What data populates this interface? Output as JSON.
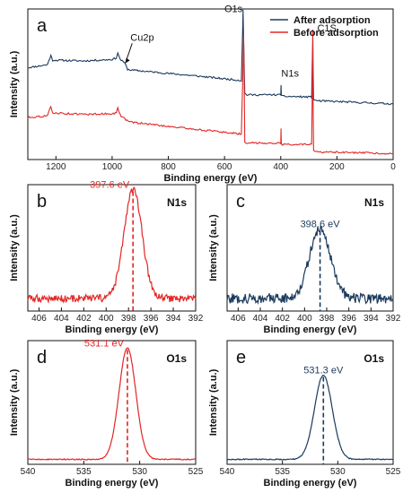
{
  "colors": {
    "after": "#1b3a5c",
    "before": "#e32626",
    "axis": "#111111"
  },
  "chart_data": [
    {
      "id": "a",
      "type": "line",
      "panel_letter": "a",
      "xlabel": "Binding energy (eV)",
      "ylabel": "Intensity (a.u.)",
      "xlim": [
        1300,
        0
      ],
      "x_reversed": true,
      "xticks": [
        1200,
        1000,
        800,
        600,
        400,
        200,
        0
      ],
      "legend": "top-right",
      "series": [
        {
          "name": "After adsorption",
          "color": "#1b3a5c",
          "x": [
            1300,
            1230,
            1225,
            1218,
            1212,
            1100,
            1000,
            985,
            980,
            975,
            968,
            955,
            950,
            945,
            935,
            700,
            540,
            535,
            534,
            532,
            528,
            520,
            400,
            399,
            398,
            396,
            290,
            288,
            286,
            285,
            283,
            270,
            0
          ],
          "y": [
            0.61,
            0.63,
            0.66,
            0.69,
            0.66,
            0.655,
            0.665,
            0.675,
            0.71,
            0.68,
            0.66,
            0.64,
            0.62,
            0.6,
            0.595,
            0.555,
            0.525,
            0.9,
            1.0,
            0.8,
            0.44,
            0.43,
            0.43,
            0.5,
            0.43,
            0.42,
            0.415,
            0.62,
            0.8,
            0.62,
            0.4,
            0.39,
            0.37
          ]
        },
        {
          "name": "Before  adsorption",
          "color": "#e32626",
          "x": [
            1300,
            1230,
            1225,
            1218,
            1212,
            1100,
            1000,
            985,
            980,
            975,
            968,
            955,
            940,
            700,
            540,
            535,
            532,
            530,
            528,
            520,
            400,
            399,
            398,
            396,
            290,
            288,
            286,
            285,
            283,
            270,
            0
          ],
          "y": [
            0.28,
            0.29,
            0.32,
            0.35,
            0.31,
            0.3,
            0.305,
            0.31,
            0.34,
            0.31,
            0.29,
            0.27,
            0.25,
            0.2,
            0.17,
            0.55,
            0.84,
            0.5,
            0.12,
            0.11,
            0.11,
            0.2,
            0.11,
            0.1,
            0.1,
            0.4,
            0.86,
            0.4,
            0.06,
            0.05,
            0.04
          ]
        }
      ],
      "annotations": [
        {
          "text": "O1s",
          "x": 536,
          "y": 0.98
        },
        {
          "text": "Cu2p",
          "x": 935,
          "y": 0.79,
          "arrow_to": [
            953,
            0.64
          ]
        },
        {
          "text": "N1s",
          "x": 398,
          "y": 0.55
        },
        {
          "text": "C1S",
          "x": 270,
          "y": 0.85
        }
      ]
    },
    {
      "id": "b",
      "type": "line",
      "panel_letter": "b",
      "peak_name": "N1s",
      "peak_label": "397.6 eV",
      "peak": 397.6,
      "width": 0.8,
      "amplitude": 0.86,
      "baseline": 0.1,
      "noise": 0.03,
      "color": "#e32626",
      "xlabel": "Binding energy (eV)",
      "ylabel": "Intensity (a.u.)",
      "xlim": [
        407,
        392
      ],
      "x_reversed": true,
      "xticks": [
        406,
        404,
        402,
        400,
        398,
        396,
        394,
        392
      ]
    },
    {
      "id": "c",
      "type": "line",
      "panel_letter": "c",
      "peak_name": "N1s",
      "peak_label": "398.6 eV",
      "peak": 398.6,
      "width": 0.95,
      "amplitude": 0.55,
      "baseline": 0.1,
      "noise": 0.04,
      "color": "#1b3a5c",
      "xlabel": "Binding energy (eV)",
      "ylabel": "Intensity (a.u.)",
      "xlim": [
        407,
        392
      ],
      "x_reversed": true,
      "xticks": [
        406,
        404,
        402,
        400,
        398,
        396,
        394,
        392
      ]
    },
    {
      "id": "d",
      "type": "line",
      "panel_letter": "d",
      "peak_name": "O1s",
      "peak_label": "531.1 eV",
      "peak": 531.1,
      "width": 0.75,
      "amplitude": 0.9,
      "baseline": 0.04,
      "noise": 0.004,
      "color": "#e32626",
      "xlabel": "Binding energy (eV)",
      "ylabel": "Intensity (a.u.)",
      "xlim": [
        540,
        525
      ],
      "x_reversed": true,
      "xticks": [
        540,
        535,
        530,
        525
      ]
    },
    {
      "id": "e",
      "type": "line",
      "panel_letter": "e",
      "peak_name": "O1s",
      "peak_label": "531.3 eV",
      "peak": 531.3,
      "width": 0.8,
      "amplitude": 0.68,
      "baseline": 0.04,
      "noise": 0.004,
      "color": "#1b3a5c",
      "xlabel": "Binding energy (eV)",
      "ylabel": "Intensity (a.u.)",
      "xlim": [
        540,
        525
      ],
      "x_reversed": true,
      "xticks": [
        540,
        535,
        530,
        525
      ]
    }
  ]
}
